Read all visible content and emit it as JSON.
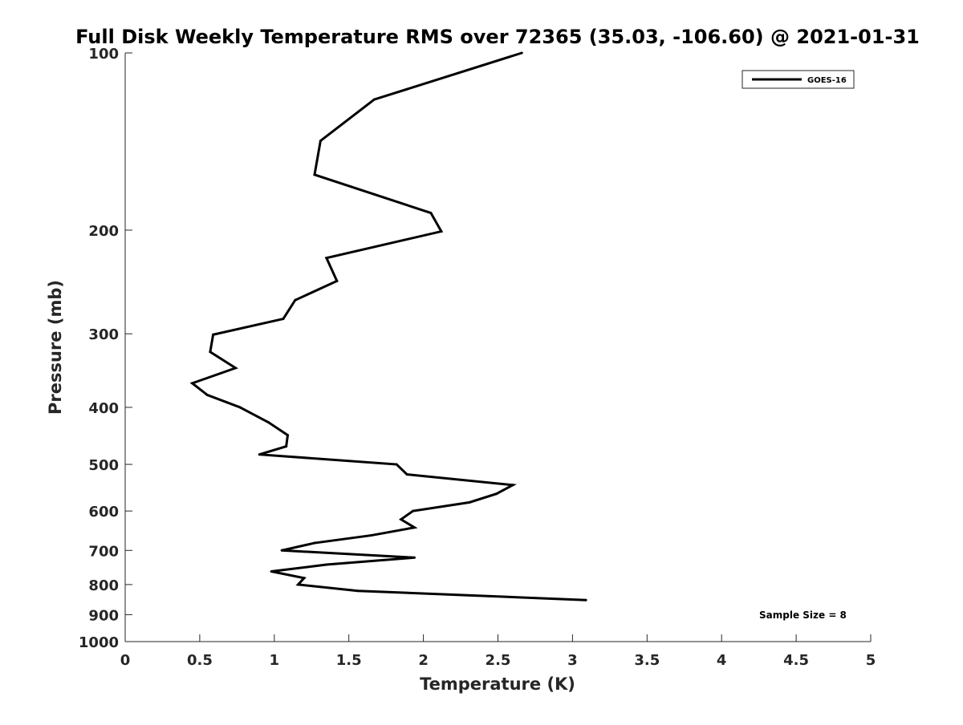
{
  "chart_data": {
    "type": "line",
    "title": "Full Disk Weekly Temperature RMS over 72365 (35.03, -106.60) @ 2021-01-31",
    "xlabel": "Temperature (K)",
    "ylabel": "Pressure (mb)",
    "xlim": [
      0,
      5
    ],
    "ylim": [
      100,
      1000
    ],
    "yscale": "log",
    "yaxis_reversed": true,
    "x_ticks": [
      "0",
      "0.5",
      "1",
      "1.5",
      "2",
      "2.5",
      "3",
      "3.5",
      "4",
      "4.5",
      "5"
    ],
    "y_ticks": [
      "100",
      "200",
      "300",
      "400",
      "500",
      "600",
      "700",
      "800",
      "900",
      "1000"
    ],
    "grid": false,
    "legend_position": "top-right",
    "series": [
      {
        "name": "GOES-16",
        "color": "#000000",
        "points": [
          {
            "x": 2.66,
            "y": 100
          },
          {
            "x": 1.67,
            "y": 120
          },
          {
            "x": 1.31,
            "y": 141
          },
          {
            "x": 1.27,
            "y": 161
          },
          {
            "x": 2.05,
            "y": 187
          },
          {
            "x": 2.12,
            "y": 201
          },
          {
            "x": 1.35,
            "y": 223
          },
          {
            "x": 1.42,
            "y": 244
          },
          {
            "x": 1.14,
            "y": 263
          },
          {
            "x": 1.06,
            "y": 283
          },
          {
            "x": 0.59,
            "y": 301
          },
          {
            "x": 0.57,
            "y": 322
          },
          {
            "x": 0.74,
            "y": 343
          },
          {
            "x": 0.45,
            "y": 364
          },
          {
            "x": 0.55,
            "y": 381
          },
          {
            "x": 0.77,
            "y": 400
          },
          {
            "x": 0.96,
            "y": 424
          },
          {
            "x": 1.09,
            "y": 446
          },
          {
            "x": 1.08,
            "y": 466
          },
          {
            "x": 0.9,
            "y": 481
          },
          {
            "x": 1.82,
            "y": 500
          },
          {
            "x": 1.89,
            "y": 520
          },
          {
            "x": 2.6,
            "y": 542
          },
          {
            "x": 2.49,
            "y": 561
          },
          {
            "x": 2.31,
            "y": 580
          },
          {
            "x": 1.93,
            "y": 600
          },
          {
            "x": 1.85,
            "y": 620
          },
          {
            "x": 1.94,
            "y": 640
          },
          {
            "x": 1.65,
            "y": 660
          },
          {
            "x": 1.27,
            "y": 680
          },
          {
            "x": 1.05,
            "y": 700
          },
          {
            "x": 1.94,
            "y": 720
          },
          {
            "x": 1.35,
            "y": 740
          },
          {
            "x": 0.98,
            "y": 760
          },
          {
            "x": 1.2,
            "y": 780
          },
          {
            "x": 1.16,
            "y": 800
          },
          {
            "x": 1.56,
            "y": 820
          },
          {
            "x": 3.09,
            "y": 850
          }
        ]
      }
    ],
    "annotations": [
      {
        "text": "Sample Size = 8"
      }
    ]
  }
}
